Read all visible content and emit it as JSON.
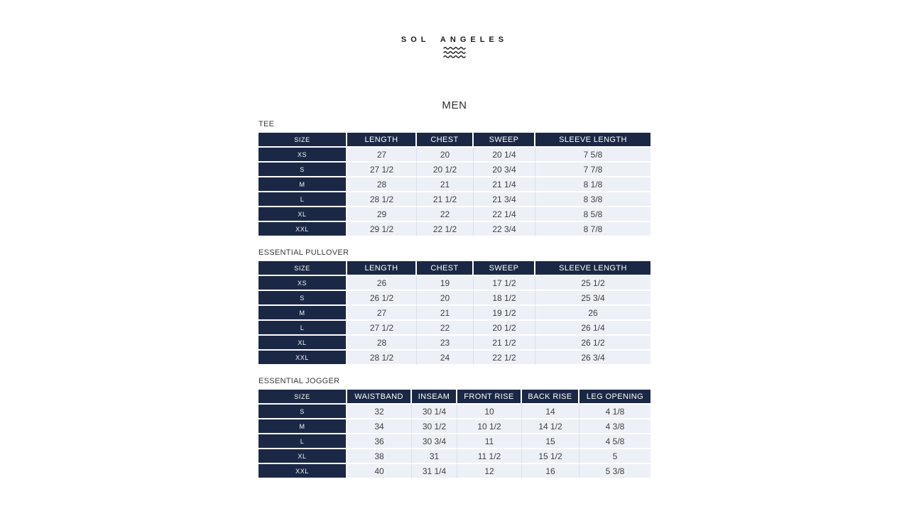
{
  "logo": {
    "text": "SOL ANGELES",
    "icon": "waves-icon"
  },
  "page_title": "MEN",
  "colors": {
    "header_navy": "#1b2845",
    "cell_light": "#edf0f6",
    "cell_separator": "#d9dfe9",
    "text_dark": "#3f3f3f"
  },
  "tables": [
    {
      "title": "TEE",
      "columns": [
        "SIZE",
        "LENGTH",
        "CHEST",
        "SWEEP",
        "SLEEVE LENGTH"
      ],
      "rows": [
        [
          "XS",
          "27",
          "20",
          "20 1/4",
          "7 5/8"
        ],
        [
          "S",
          "27 1/2",
          "20 1/2",
          "20 3/4",
          "7 7/8"
        ],
        [
          "M",
          "28",
          "21",
          "21 1/4",
          "8 1/8"
        ],
        [
          "L",
          "28 1/2",
          "21 1/2",
          "21 3/4",
          "8 3/8"
        ],
        [
          "XL",
          "29",
          "22",
          "22 1/4",
          "8 5/8"
        ],
        [
          "XXL",
          "29 1/2",
          "22 1/2",
          "22 3/4",
          "8 7/8"
        ]
      ]
    },
    {
      "title": "ESSENTIAL PULLOVER",
      "columns": [
        "SIZE",
        "LENGTH",
        "CHEST",
        "SWEEP",
        "SLEEVE LENGTH"
      ],
      "rows": [
        [
          "XS",
          "26",
          "19",
          "17 1/2",
          "25 1/2"
        ],
        [
          "S",
          "26 1/2",
          "20",
          "18 1/2",
          "25 3/4"
        ],
        [
          "M",
          "27",
          "21",
          "19 1/2",
          "26"
        ],
        [
          "L",
          "27 1/2",
          "22",
          "20 1/2",
          "26 1/4"
        ],
        [
          "XL",
          "28",
          "23",
          "21 1/2",
          "26 1/2"
        ],
        [
          "XXL",
          "28 1/2",
          "24",
          "22 1/2",
          "26 3/4"
        ]
      ]
    },
    {
      "title": "ESSENTIAL JOGGER",
      "columns": [
        "SIZE",
        "WAISTBAND",
        "INSEAM",
        "FRONT RISE",
        "BACK RISE",
        "LEG OPENING"
      ],
      "rows": [
        [
          "S",
          "32",
          "30 1/4",
          "10",
          "14",
          "4 1/8"
        ],
        [
          "M",
          "34",
          "30 1/2",
          "10 1/2",
          "14 1/2",
          "4 3/8"
        ],
        [
          "L",
          "36",
          "30 3/4",
          "11",
          "15",
          "4 5/8"
        ],
        [
          "XL",
          "38",
          "31",
          "11 1/2",
          "15 1/2",
          "5"
        ],
        [
          "XXL",
          "40",
          "31 1/4",
          "12",
          "16",
          "5 3/8"
        ]
      ]
    }
  ]
}
